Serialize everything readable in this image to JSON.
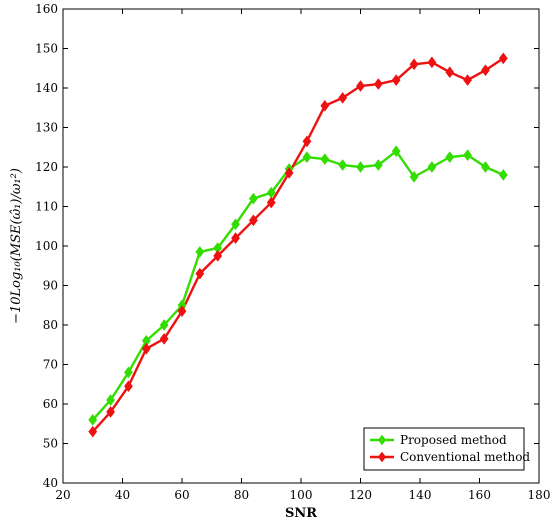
{
  "chart_data": {
    "type": "line",
    "xlabel": "SNR",
    "ylabel": "−10Log₁₀(MSE(ω̂₁)/ω₁²)",
    "xlim": [
      20,
      180
    ],
    "ylim": [
      40,
      160
    ],
    "xticks": [
      20,
      40,
      60,
      80,
      100,
      120,
      140,
      160,
      180
    ],
    "yticks": [
      40,
      50,
      60,
      70,
      80,
      90,
      100,
      110,
      120,
      130,
      140,
      150,
      160
    ],
    "grid": false,
    "legend_position": "bottom-right",
    "series": [
      {
        "name": "Proposed method",
        "color": "#33dd00",
        "marker": "diamond",
        "x": [
          30,
          36,
          42,
          48,
          54,
          60,
          66,
          72,
          78,
          84,
          90,
          96,
          102,
          108,
          114,
          120,
          126,
          132,
          138,
          144,
          150,
          156,
          162,
          168
        ],
        "y": [
          56,
          61,
          68,
          76,
          80,
          85,
          98.5,
          99.5,
          105.5,
          112,
          113.5,
          119.5,
          122.5,
          122,
          120.5,
          120,
          120.5,
          124,
          117.5,
          120,
          122.5,
          123,
          120,
          118
        ]
      },
      {
        "name": "Conventional method",
        "color": "#ee1111",
        "marker": "diamond",
        "x": [
          30,
          36,
          42,
          48,
          54,
          60,
          66,
          72,
          78,
          84,
          90,
          96,
          102,
          108,
          114,
          120,
          126,
          132,
          138,
          144,
          150,
          156,
          162,
          168
        ],
        "y": [
          53,
          58,
          64.5,
          74,
          76.5,
          83.5,
          93,
          97.5,
          102,
          106.5,
          111,
          118.5,
          126.5,
          135.5,
          137.5,
          140.5,
          141,
          142,
          146,
          146.5,
          144,
          142,
          144.5,
          147.5
        ]
      }
    ]
  }
}
